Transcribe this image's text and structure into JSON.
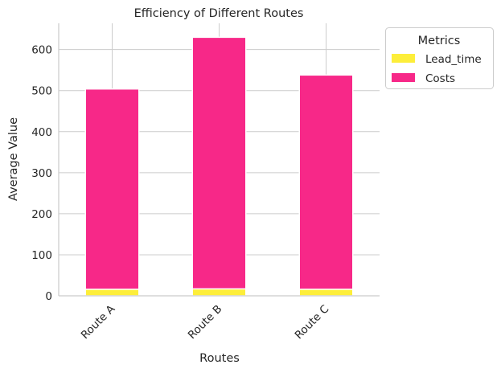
{
  "chart_data": {
    "type": "bar",
    "stacked": true,
    "title": "Efficiency of Different Routes",
    "xlabel": "Routes",
    "ylabel": "Average Value",
    "categories": [
      "Route A",
      "Route B",
      "Route C"
    ],
    "series": [
      {
        "name": "Lead_time",
        "values": [
          16,
          17,
          16
        ],
        "color": "#fdee3a"
      },
      {
        "name": "Costs",
        "values": [
          488,
          613,
          522
        ],
        "color": "#f72888"
      }
    ],
    "ylim": [
      0,
      664
    ],
    "yticks": [
      0,
      100,
      200,
      300,
      400,
      500,
      600
    ],
    "grid": true,
    "legend": {
      "title": "Metrics",
      "placement": "outside upper right"
    }
  }
}
